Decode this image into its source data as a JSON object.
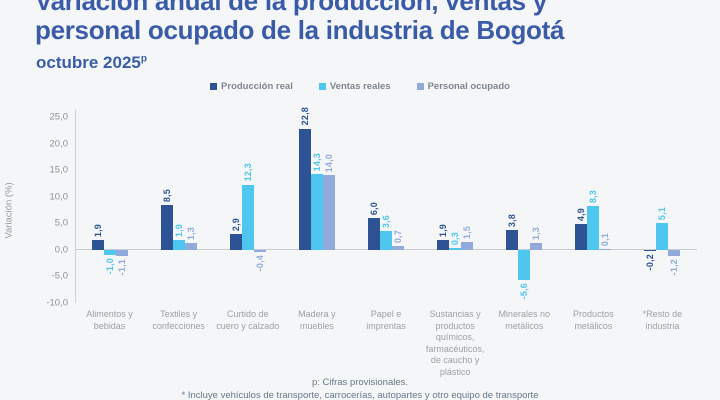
{
  "header": {
    "title_line1": "Variación anual de la producción, ventas y",
    "title_line2": "personal ocupado de la industria de Bogotá",
    "subtitle": "octubre 2025",
    "subtitle_superscript": "p"
  },
  "chart_data": {
    "type": "bar",
    "title": "Variación anual de la producción, ventas y personal ocupado de la industria de Bogotá",
    "subtitle": "octubre 2025p",
    "ylabel": "Variación (%)",
    "ylim": [
      -10,
      25
    ],
    "ytick_values": [
      25,
      20,
      15,
      10,
      5,
      0,
      -5,
      -10
    ],
    "ytick_labels": [
      "25,0",
      "20,0",
      "15,0",
      "10,0",
      "5,0",
      "0,0",
      "-5,0",
      "-10,0"
    ],
    "grid": false,
    "legend_position": "top",
    "decimal_separator": ",",
    "categories": [
      "Alimentos y bebidas",
      "Textiles y confecciones",
      "Curtido de cuero y calzado",
      "Madera y muebles",
      "Papel e imprentas",
      "Sustancias y productos químicos, farmacéuticos, de caucho y plástico",
      "Minerales no metálicos",
      "Productos metálicos",
      "*Resto de industria"
    ],
    "series": [
      {
        "name": "Producción real",
        "color": "#2e5394",
        "values": [
          1.9,
          8.5,
          2.9,
          22.8,
          6.0,
          1.9,
          3.8,
          4.9,
          -0.2
        ]
      },
      {
        "name": "Ventas reales",
        "color": "#4fc6ef",
        "values": [
          -1.0,
          1.9,
          12.3,
          14.3,
          3.6,
          0.3,
          -5.6,
          8.3,
          5.1
        ]
      },
      {
        "name": "Personal ocupado",
        "color": "#92a9dc",
        "values": [
          -1.1,
          1.3,
          -0.4,
          14.0,
          0.7,
          1.5,
          1.3,
          0.1,
          -1.2
        ]
      }
    ]
  },
  "footer": {
    "line1": "p: Cifras provisionales.",
    "line2": "* Incluye vehículos de transporte, carrocerías, autopartes y otro equipo de transporte"
  },
  "colors": {
    "title": "#3a5ca8",
    "background": "#f5f6f7",
    "axis": "#c7cad0",
    "tick_text": "#8c929c",
    "category_text": "#9ba1a9",
    "footer_text": "#66788e"
  }
}
